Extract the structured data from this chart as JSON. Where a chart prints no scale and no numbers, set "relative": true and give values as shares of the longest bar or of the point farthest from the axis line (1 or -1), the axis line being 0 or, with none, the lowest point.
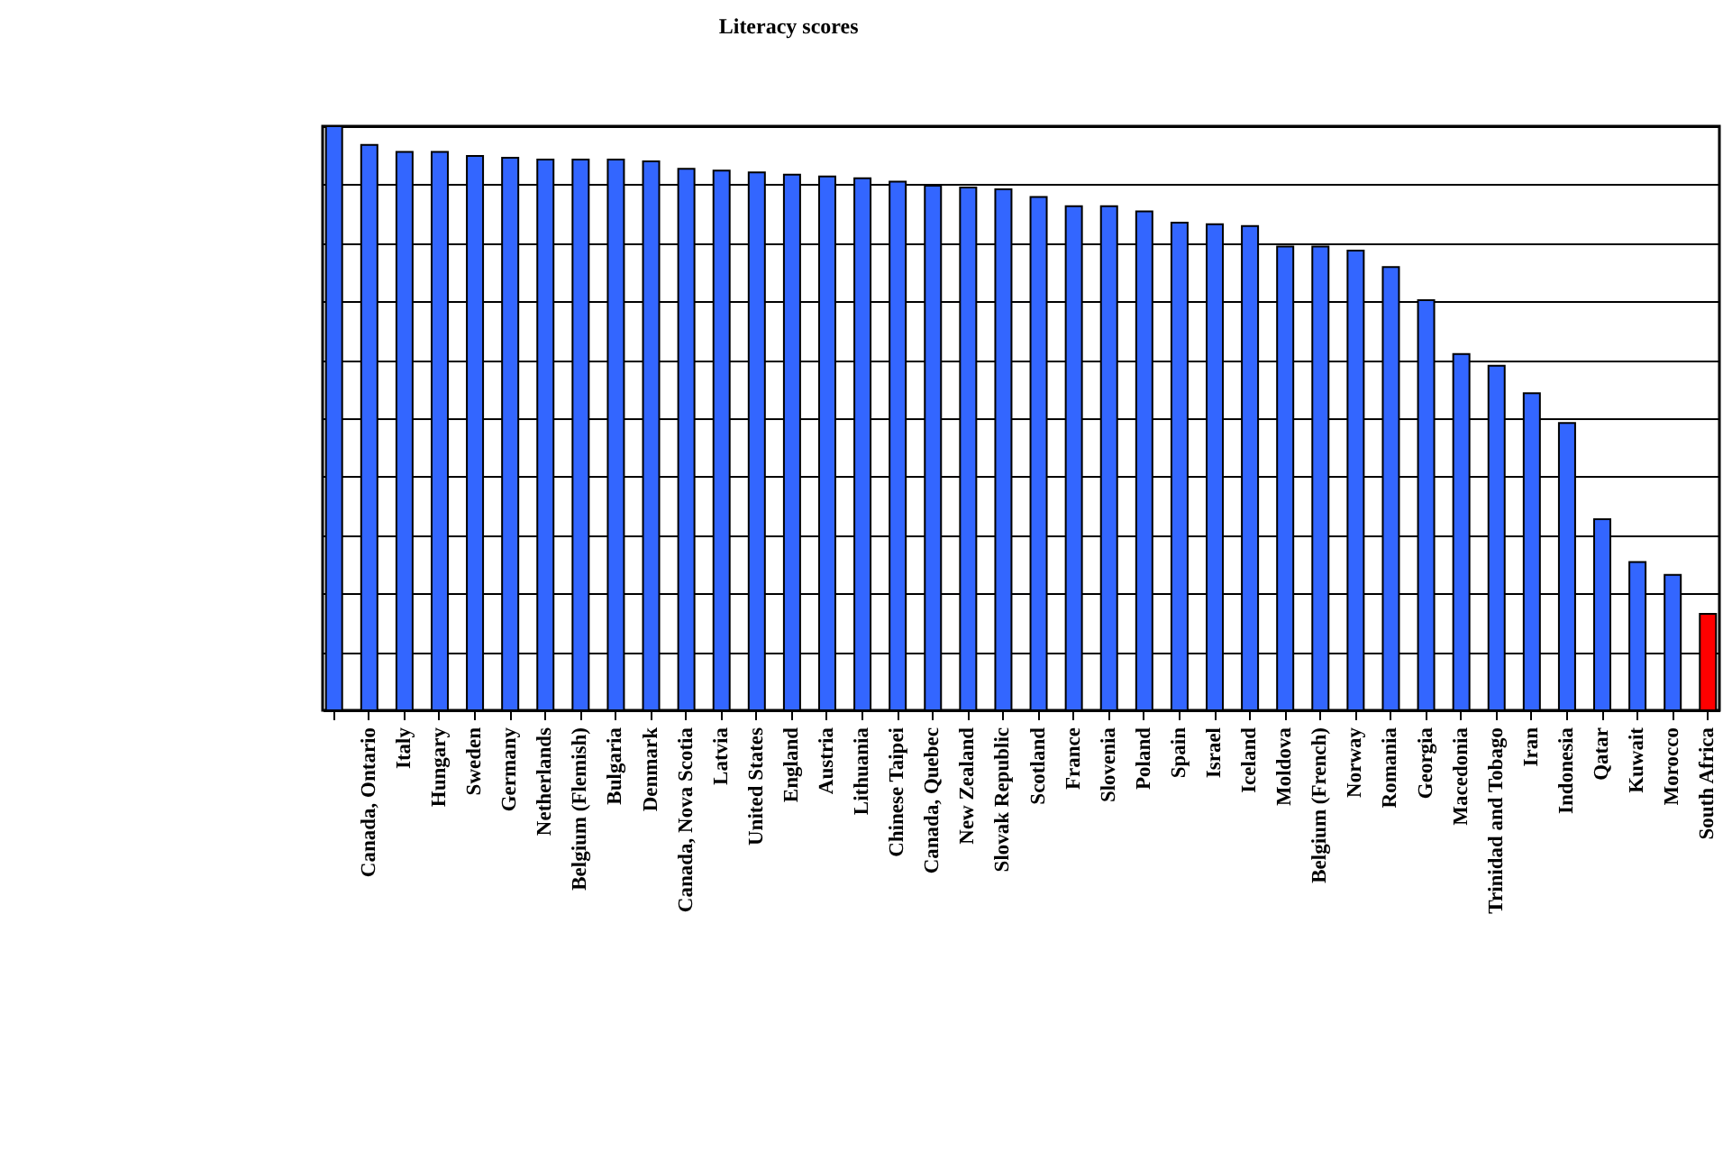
{
  "chart_data": {
    "type": "bar",
    "title": "Literacy scores",
    "relative": true,
    "grid": "y",
    "categories": [
      null,
      "Canada, Ontario",
      "Italy",
      "Hungary",
      "Sweden",
      "Germany",
      "Netherlands",
      "Belgium (Flemish)",
      "Bulgaria",
      "Denmark",
      "Canada, Nova Scotia",
      "Latvia",
      "United States",
      "England",
      "Austria",
      "Lithuania",
      "Chinese Taipei",
      "Canada, Quebec",
      "New Zealand",
      "Slovak Republic",
      "Scotland",
      "France",
      "Slovenia",
      "Poland",
      "Spain",
      "Israel",
      "Iceland",
      "Moldova",
      "Belgium (French)",
      "Norway",
      "Romania",
      "Georgia",
      "Macedonia",
      "Trinidad and Tobago",
      "Iran",
      "Indonesia",
      "Qatar",
      "Kuwait",
      "Morocco",
      "South Africa"
    ],
    "values": [
      1.0,
      0.968,
      0.956,
      0.956,
      0.949,
      0.946,
      0.943,
      0.943,
      0.943,
      0.94,
      0.927,
      0.924,
      0.921,
      0.917,
      0.914,
      0.911,
      0.905,
      0.898,
      0.895,
      0.892,
      0.879,
      0.863,
      0.863,
      0.854,
      0.835,
      0.832,
      0.829,
      0.794,
      0.794,
      0.787,
      0.759,
      0.702,
      0.61,
      0.59,
      0.543,
      0.492,
      0.327,
      0.254,
      0.232,
      0.165
    ],
    "colors": [
      "#3366ff",
      "#3366ff",
      "#3366ff",
      "#3366ff",
      "#3366ff",
      "#3366ff",
      "#3366ff",
      "#3366ff",
      "#3366ff",
      "#3366ff",
      "#3366ff",
      "#3366ff",
      "#3366ff",
      "#3366ff",
      "#3366ff",
      "#3366ff",
      "#3366ff",
      "#3366ff",
      "#3366ff",
      "#3366ff",
      "#3366ff",
      "#3366ff",
      "#3366ff",
      "#3366ff",
      "#3366ff",
      "#3366ff",
      "#3366ff",
      "#3366ff",
      "#3366ff",
      "#3366ff",
      "#3366ff",
      "#3366ff",
      "#3366ff",
      "#3366ff",
      "#3366ff",
      "#3366ff",
      "#3366ff",
      "#3366ff",
      "#3366ff",
      "#ff0000"
    ]
  }
}
